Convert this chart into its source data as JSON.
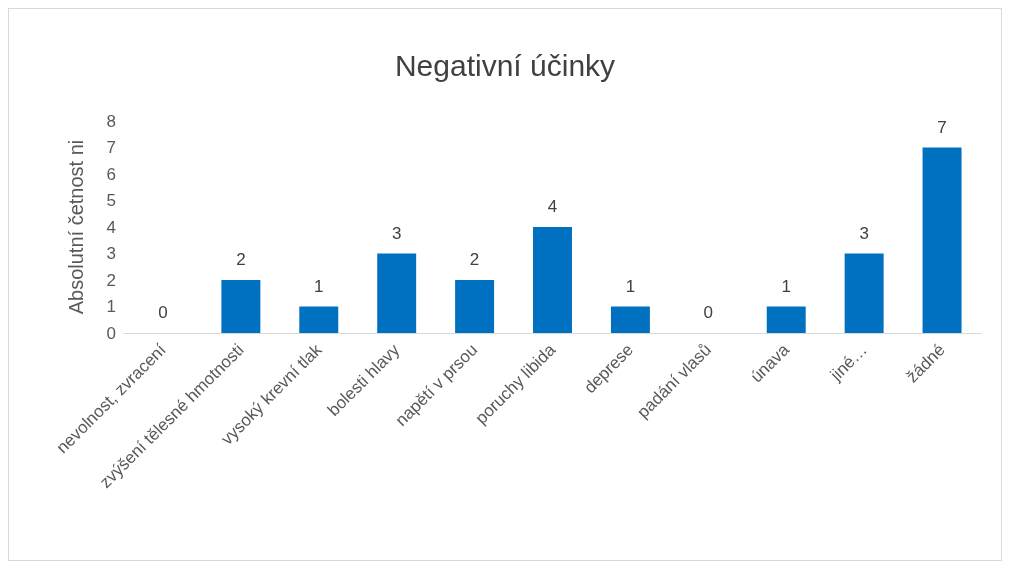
{
  "chart_data": {
    "type": "bar",
    "title": "Negativní účinky",
    "ylabel": "Absolutní četnost ni",
    "categories": [
      "nevolnost, zvracení",
      "zvýšení tělesné hmotnosti",
      "vysoký krevní tlak",
      "bolesti hlavy",
      "napětí v prsou",
      "poruchy libida",
      "deprese",
      "padání vlasů",
      "únava",
      "jiné…",
      "žádné"
    ],
    "values": [
      0,
      2,
      1,
      3,
      2,
      4,
      1,
      0,
      1,
      3,
      7
    ],
    "color": "#0070c0",
    "ylim": [
      0,
      8
    ],
    "yticks": [
      0,
      1,
      2,
      3,
      4,
      5,
      6,
      7,
      8
    ],
    "data_labels": true
  }
}
